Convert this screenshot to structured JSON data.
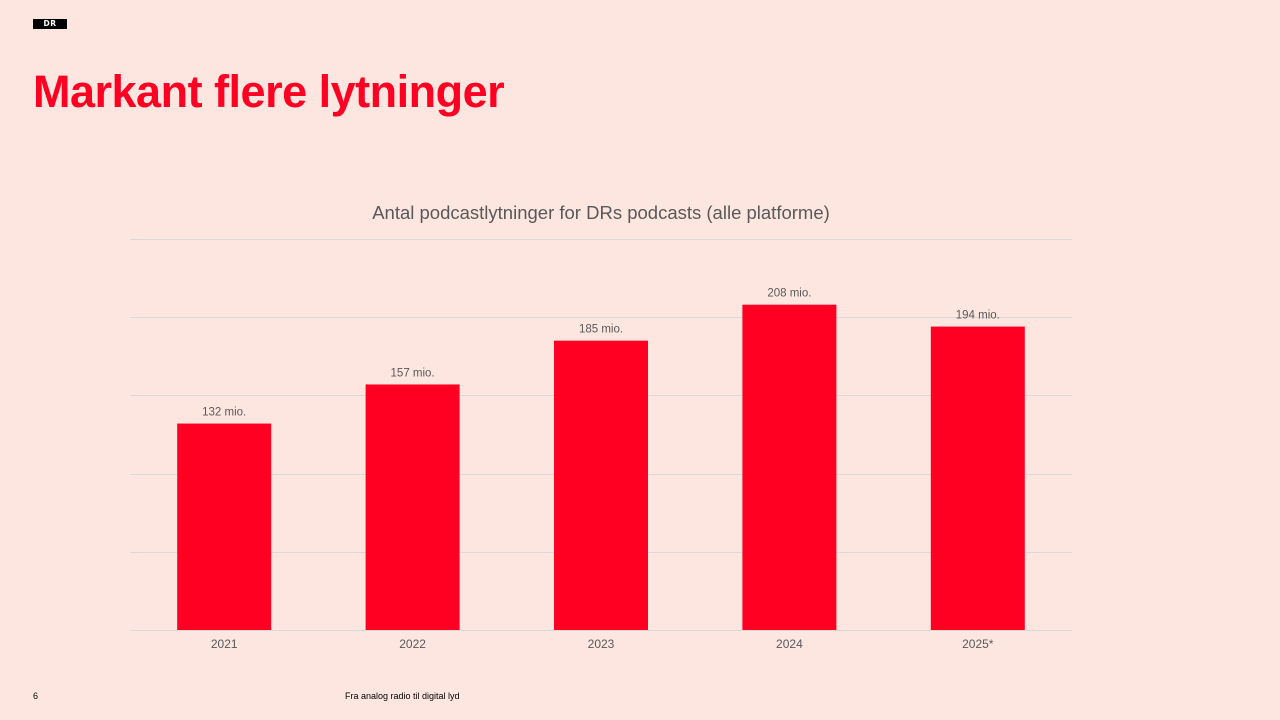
{
  "brand": {
    "logo_text": "DR"
  },
  "slide": {
    "title": "Markant flere lytninger",
    "page_number": "6",
    "footer": "Fra analog radio til digital lyd"
  },
  "colors": {
    "background": "#fde6e0",
    "accent": "#ff0022",
    "bar": "#ff0022",
    "gridline": "#d9d9d9",
    "label_text": "#595959"
  },
  "chart_data": {
    "type": "bar",
    "title": "Antal podcastlytninger for DRs podcasts (alle platforme)",
    "xlabel": "",
    "ylabel": "",
    "categories": [
      "2021",
      "2022",
      "2023",
      "2024",
      "2025*"
    ],
    "values": [
      132,
      157,
      185,
      208,
      194
    ],
    "data_labels": [
      "132 mio.",
      "157 mio.",
      "185 mio.",
      "208 mio.",
      "194 mio."
    ],
    "unit": "mio.",
    "ylim": [
      0,
      250
    ],
    "gridlines": [
      0,
      50,
      100,
      150,
      200,
      250
    ],
    "grid": true,
    "legend": "none"
  }
}
